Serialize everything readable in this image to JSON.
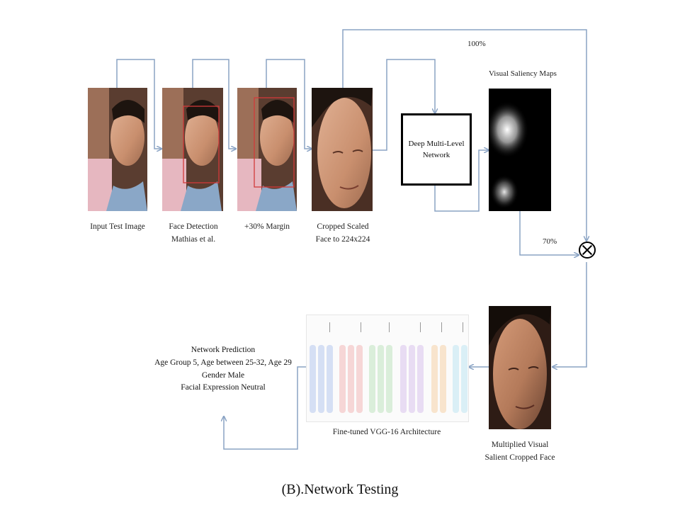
{
  "figure_title": "(B).Network Testing",
  "stages": [
    {
      "id": "input",
      "caption_lines": [
        "Input Test Image"
      ]
    },
    {
      "id": "detect",
      "caption_lines": [
        "Face Detection",
        "Mathias et al."
      ]
    },
    {
      "id": "margin",
      "caption_lines": [
        "+30% Margin"
      ]
    },
    {
      "id": "crop",
      "caption_lines": [
        "Cropped Scaled",
        "Face to 224x224"
      ]
    }
  ],
  "network_box": {
    "label": "Deep Multi-Level\nNetwork"
  },
  "saliency": {
    "title": "Visual Saliency Maps"
  },
  "weights": {
    "top": "100%",
    "bottom": "70%"
  },
  "multiplied_face": {
    "caption_lines": [
      "Multiplied Visual",
      "Salient Cropped Face"
    ]
  },
  "vgg": {
    "caption": "Fine-tuned VGG-16 Architecture"
  },
  "prediction": {
    "lines": [
      "Network Prediction",
      "Age Group 5, Age between 25-32, Age 29",
      "Gender Male",
      "Facial Expression Neutral"
    ]
  },
  "colors": {
    "arrow": "#8aa3c4",
    "detection_box": "#d23a3a",
    "vgg_blue": "#b7c9ee",
    "vgg_red": "#f2b8b8",
    "vgg_green": "#bfe3bf",
    "vgg_purple": "#d8c2ec",
    "vgg_orange": "#f6d2a8",
    "vgg_cyan": "#bfe6f2"
  }
}
